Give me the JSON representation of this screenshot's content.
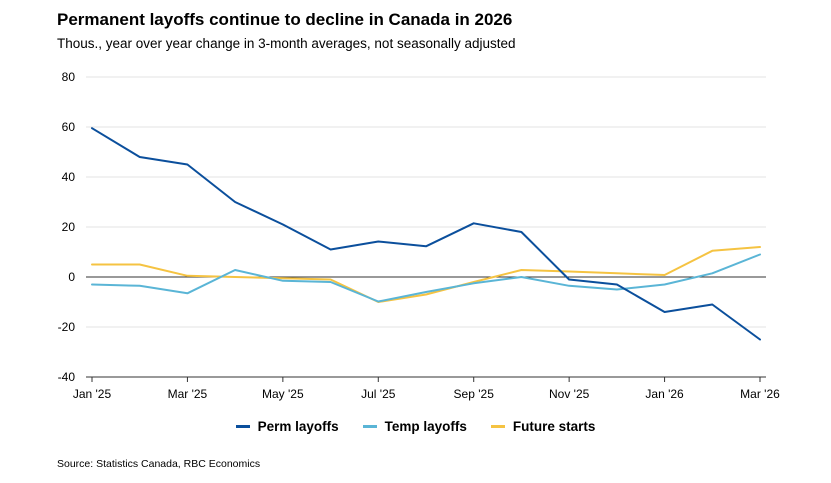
{
  "title": "Permanent layoffs continue to decline in Canada in 2026",
  "subtitle": "Thous., year over year change in 3-month averages, not seasonally adjusted",
  "source": "Source: Statistics Canada, RBC Economics",
  "chart_data": {
    "type": "line",
    "x": [
      "Jan '25",
      "Feb '25",
      "Mar '25",
      "Apr '25",
      "May '25",
      "Jun '25",
      "Jul '25",
      "Aug '25",
      "Sep '25",
      "Oct '25",
      "Nov '25",
      "Dec '25",
      "Jan '26",
      "Feb '26",
      "Mar '26"
    ],
    "x_tick_labels": [
      "Jan '25",
      "Mar '25",
      "May '25",
      "Jul '25",
      "Sep '25",
      "Nov '25",
      "Jan '26",
      "Mar '26"
    ],
    "y_ticks": [
      "80",
      "60",
      "40",
      "20",
      "0",
      "-20",
      "-40"
    ],
    "ylim": [
      -40,
      80
    ],
    "grid": true,
    "legend_position": "bottom",
    "series": [
      {
        "name": "Perm layoffs",
        "color": "#0b4f9c",
        "values": [
          59.5,
          48,
          45,
          30,
          21,
          11,
          14.2,
          12.3,
          21.5,
          18,
          -1,
          -3,
          -14,
          -11,
          -25
        ]
      },
      {
        "name": "Temp layoffs",
        "color": "#5ab5d6",
        "values": [
          -3,
          -3.5,
          -6.5,
          2.8,
          -1.5,
          -2,
          -9.8,
          -6,
          -2.5,
          0,
          -3.5,
          -5,
          -3,
          1.5,
          9
        ]
      },
      {
        "name": "Future starts",
        "color": "#f5c342",
        "values": [
          5,
          5,
          0.5,
          0,
          -0.5,
          -1,
          -10,
          -7,
          -2,
          2.8,
          2.2,
          1.5,
          0.8,
          10.5,
          12
        ]
      }
    ]
  }
}
